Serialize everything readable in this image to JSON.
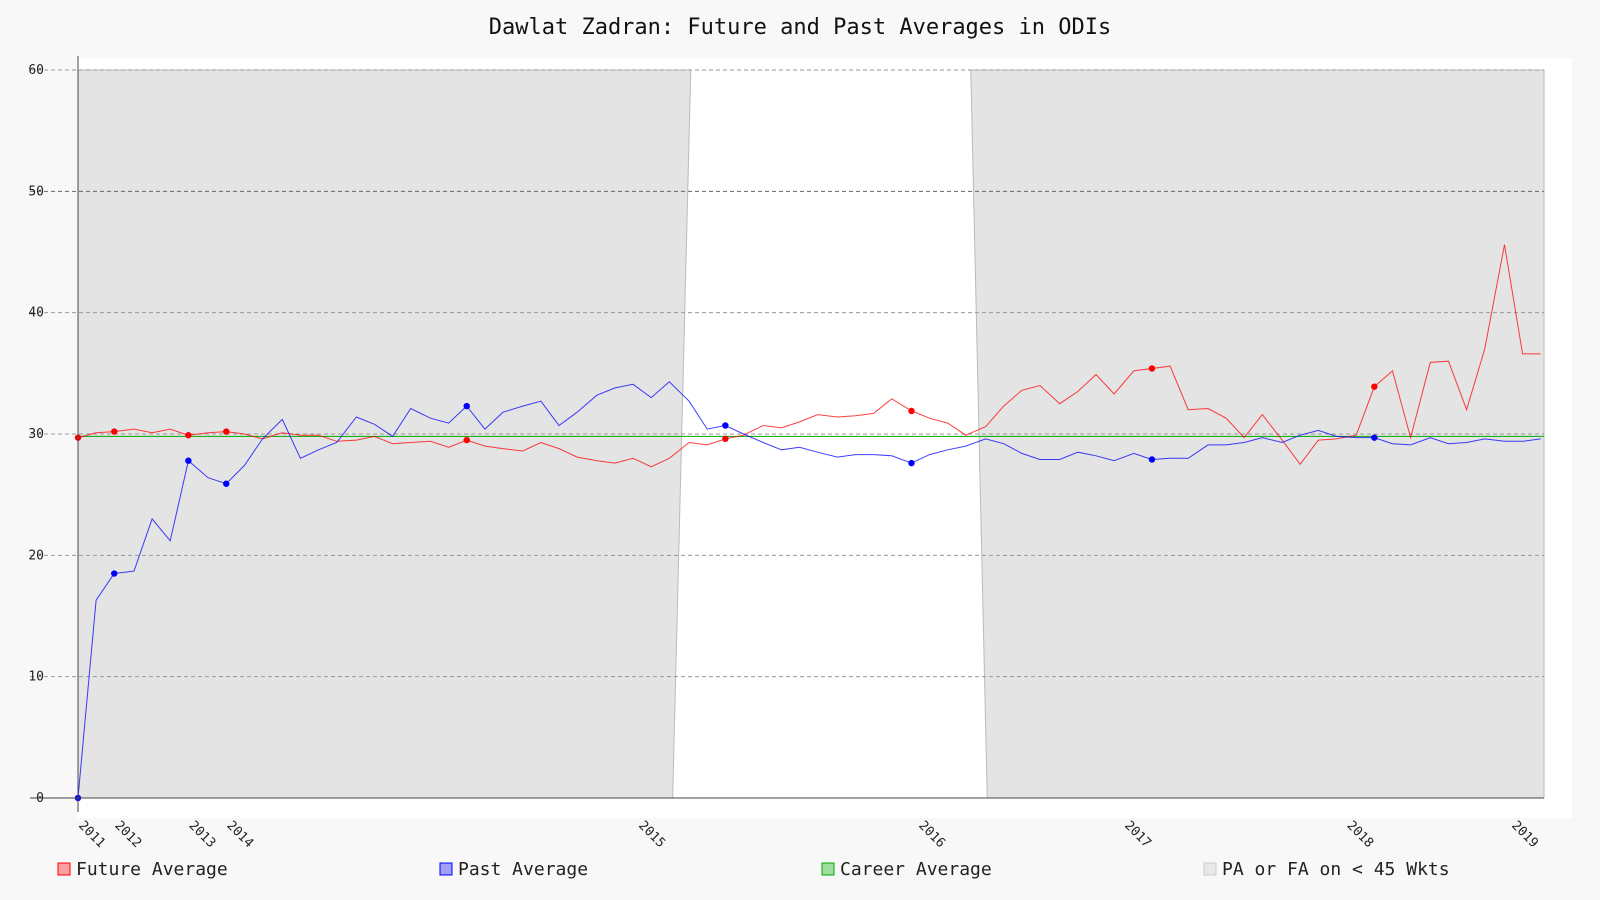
{
  "chart_data": {
    "type": "line",
    "title": "Dawlat Zadran: Future and Past Averages in ODIs",
    "xlabel": "",
    "ylabel": "",
    "ylim": [
      0,
      60
    ],
    "yticks": [
      0,
      10,
      20,
      30,
      40,
      50,
      60
    ],
    "xlim": [
      2011.0,
      2019.9
    ],
    "xticks": [
      {
        "label": "2011",
        "x": 2011.0
      },
      {
        "label": "2012",
        "x": 2011.22
      },
      {
        "label": "2013",
        "x": 2011.67
      },
      {
        "label": "2014",
        "x": 2011.9
      },
      {
        "label": "2015",
        "x": 2014.4
      },
      {
        "label": "2016",
        "x": 2016.1
      },
      {
        "label": "2017",
        "x": 2017.35
      },
      {
        "label": "2018",
        "x": 2018.7
      },
      {
        "label": "2019",
        "x": 2019.7
      }
    ],
    "grid": true,
    "legend_position": "bottom",
    "career_average": 29.8,
    "shaded_regions": [
      {
        "series": "PA or FA on < 45 Wkts",
        "x_start_bottom": 2011.0,
        "x_start_top": 2011.0,
        "x_end_top": 2014.72,
        "x_end_bottom": 2014.61
      },
      {
        "series": "PA or FA on < 45 Wkts",
        "x_start_top": 2016.42,
        "x_start_bottom": 2016.52,
        "x_end_top": 2019.9,
        "x_end_bottom": 2019.9
      }
    ],
    "series": [
      {
        "name": "Future Average",
        "color": "#ff0000",
        "x": [
          2011.0,
          2011.11,
          2011.22,
          2011.34,
          2011.45,
          2011.56,
          2011.67,
          2011.79,
          2011.9,
          2012.01,
          2012.12,
          2012.24,
          2012.35,
          2012.46,
          2012.57,
          2012.69,
          2012.8,
          2012.91,
          2013.02,
          2013.14,
          2013.25,
          2013.36,
          2013.47,
          2013.58,
          2013.7,
          2013.81,
          2013.92,
          2014.03,
          2014.15,
          2014.26,
          2014.37,
          2014.48,
          2014.59,
          2014.71,
          2014.82,
          2014.93,
          2015.04,
          2015.16,
          2015.27,
          2015.38,
          2015.49,
          2015.61,
          2015.72,
          2015.83,
          2015.94,
          2016.06,
          2016.17,
          2016.28,
          2016.39,
          2016.51,
          2016.62,
          2016.73,
          2016.84,
          2016.96,
          2017.07,
          2017.18,
          2017.29,
          2017.41,
          2017.52,
          2017.63,
          2017.74,
          2017.86,
          2017.97,
          2018.08,
          2018.19,
          2018.31,
          2018.42,
          2018.53,
          2018.64,
          2018.76,
          2018.87,
          2018.98,
          2019.09,
          2019.21,
          2019.32,
          2019.43,
          2019.54,
          2019.66,
          2019.77,
          2019.88
        ],
        "y": [
          29.7,
          30.1,
          30.2,
          30.4,
          30.1,
          30.4,
          29.9,
          30.1,
          30.2,
          30.0,
          29.6,
          30.1,
          29.9,
          29.9,
          29.4,
          29.5,
          29.8,
          29.2,
          29.3,
          29.4,
          28.9,
          29.5,
          29.0,
          28.8,
          28.6,
          29.3,
          28.8,
          28.1,
          27.8,
          27.6,
          28.0,
          27.3,
          28.0,
          29.3,
          29.1,
          29.6,
          29.9,
          30.7,
          30.5,
          31.0,
          31.6,
          31.4,
          31.5,
          31.7,
          32.9,
          31.9,
          31.3,
          30.9,
          29.9,
          30.6,
          32.3,
          33.6,
          34.0,
          32.5,
          33.5,
          34.9,
          33.3,
          35.2,
          35.4,
          35.6,
          32.0,
          32.1,
          31.3,
          29.7,
          31.6,
          29.5,
          27.5,
          29.5,
          29.6,
          29.9,
          33.9,
          35.2,
          29.7,
          35.9,
          36.0,
          32.0,
          37.0,
          45.6,
          36.6,
          36.6
        ]
      },
      {
        "name": "Past Average",
        "color": "#0000ff",
        "x": [
          2011.0,
          2011.11,
          2011.22,
          2011.34,
          2011.45,
          2011.56,
          2011.67,
          2011.79,
          2011.9,
          2012.01,
          2012.12,
          2012.24,
          2012.35,
          2012.46,
          2012.57,
          2012.69,
          2012.8,
          2012.91,
          2013.02,
          2013.14,
          2013.25,
          2013.36,
          2013.47,
          2013.58,
          2013.7,
          2013.81,
          2013.92,
          2014.03,
          2014.15,
          2014.26,
          2014.37,
          2014.48,
          2014.59,
          2014.71,
          2014.82,
          2014.93,
          2015.04,
          2015.16,
          2015.27,
          2015.38,
          2015.49,
          2015.61,
          2015.72,
          2015.83,
          2015.94,
          2016.06,
          2016.17,
          2016.28,
          2016.39,
          2016.51,
          2016.62,
          2016.73,
          2016.84,
          2016.96,
          2017.07,
          2017.18,
          2017.29,
          2017.41,
          2017.52,
          2017.63,
          2017.74,
          2017.86,
          2017.97,
          2018.08,
          2018.19,
          2018.31,
          2018.42,
          2018.53,
          2018.64,
          2018.76,
          2018.87,
          2018.98,
          2019.09,
          2019.21,
          2019.32,
          2019.43,
          2019.54,
          2019.66,
          2019.77,
          2019.88
        ],
        "y": [
          0.0,
          16.3,
          18.5,
          18.7,
          23.0,
          21.2,
          27.8,
          26.4,
          25.9,
          27.4,
          29.6,
          31.2,
          28.0,
          28.7,
          29.3,
          31.4,
          30.8,
          29.8,
          32.1,
          31.3,
          30.9,
          32.3,
          30.4,
          31.8,
          32.3,
          32.7,
          30.7,
          31.8,
          33.2,
          33.8,
          34.1,
          33.0,
          34.3,
          32.7,
          30.4,
          30.7,
          30.0,
          29.3,
          28.7,
          28.9,
          28.5,
          28.1,
          28.3,
          28.3,
          28.2,
          27.6,
          28.3,
          28.7,
          29.0,
          29.6,
          29.2,
          28.4,
          27.9,
          27.9,
          28.5,
          28.2,
          27.8,
          28.4,
          27.9,
          28.0,
          28.0,
          29.1,
          29.1,
          29.3,
          29.7,
          29.3,
          29.9,
          30.3,
          29.8,
          29.7,
          29.7,
          29.2,
          29.1,
          29.7,
          29.2,
          29.3,
          29.6,
          29.4,
          29.4,
          29.6
        ]
      },
      {
        "name": "Career Average",
        "color": "#00aa00"
      },
      {
        "name": "PA or FA on < 45 Wkts",
        "color": "#cccccc"
      }
    ],
    "markers": {
      "future_indices": [
        0,
        2,
        6,
        8,
        21,
        35,
        45,
        58,
        70
      ],
      "past_indices": [
        0,
        2,
        6,
        8,
        21,
        35,
        45,
        58,
        70
      ]
    }
  }
}
